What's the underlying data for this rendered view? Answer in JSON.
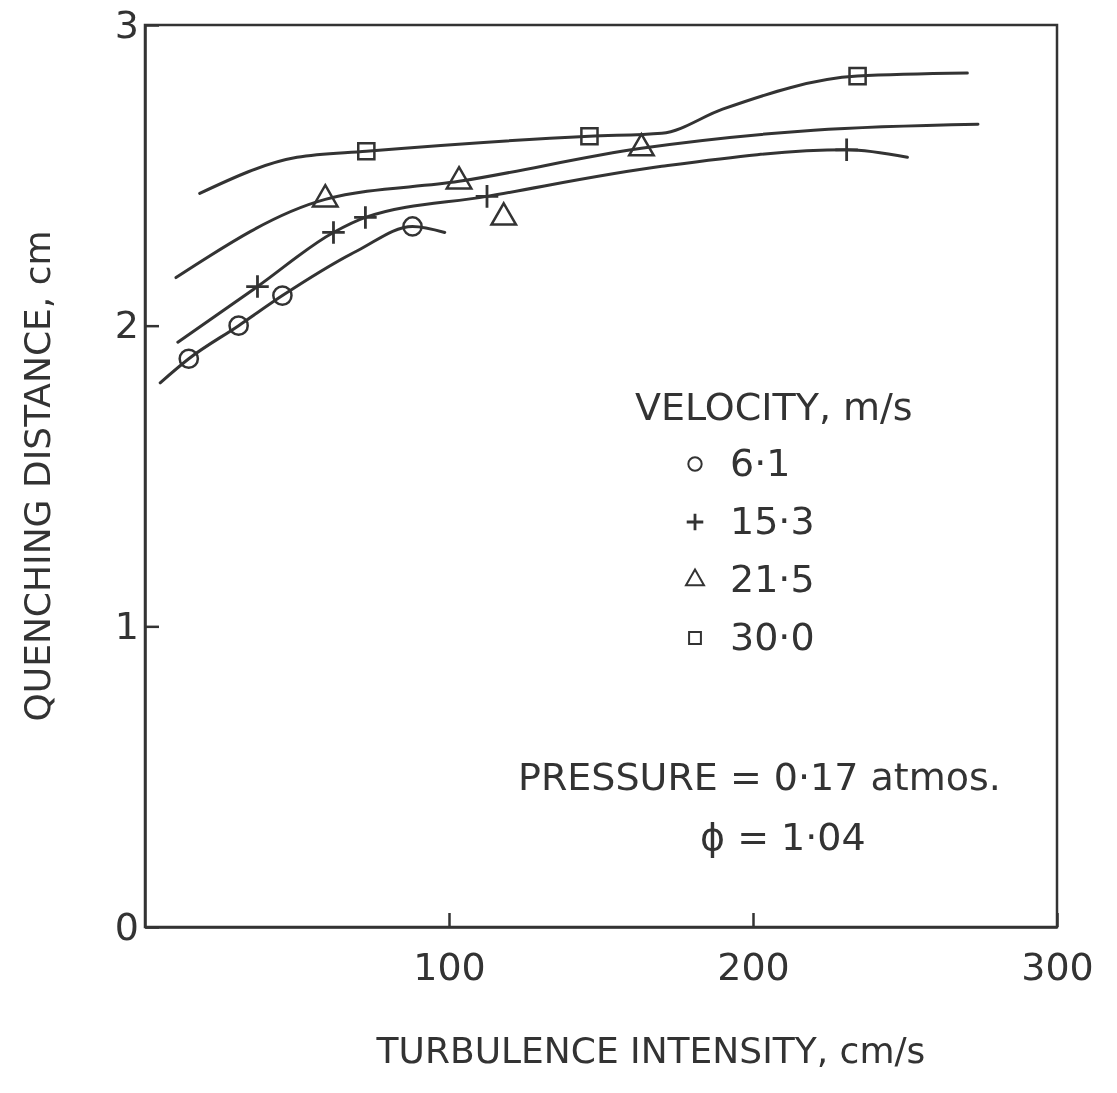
{
  "chart_data": {
    "type": "scatter",
    "xlabel": "TURBULENCE INTENSITY, cm/s",
    "ylabel": "QUENCHING DISTANCE, cm",
    "legend_title": "VELOCITY, m/s",
    "legend": "right",
    "grid": false,
    "xlim": [
      0,
      300
    ],
    "xticks": [
      100,
      200,
      300
    ],
    "ylim": [
      0,
      3
    ],
    "yticks": [
      0,
      1,
      2,
      3
    ],
    "series": [
      {
        "type": "line",
        "color": "#333333",
        "x": [
          5,
          14.4,
          30.8,
          45.2,
          70,
          88,
          98.6
        ],
        "values": [
          1.81,
          1.89,
          2.0,
          2.1,
          2.25,
          2.33,
          2.31
        ]
      },
      {
        "type": "line",
        "color": "#333333",
        "x": [
          10.8,
          37,
          62,
          72.5,
          112.5,
          170,
          230.8,
          250.8
        ],
        "values": [
          1.945,
          2.13,
          2.31,
          2.36,
          2.43,
          2.53,
          2.585,
          2.56
        ]
      },
      {
        "type": "line",
        "color": "#333333",
        "x": [
          10.2,
          59.3,
          103.3,
          163.3,
          220,
          274
        ],
        "values": [
          2.16,
          2.42,
          2.48,
          2.59,
          2.65,
          2.67
        ]
      },
      {
        "type": "line",
        "color": "#333333",
        "x": [
          18,
          50,
          72.8,
          146.2,
          170,
          190,
          234.4,
          270.5
        ],
        "values": [
          2.44,
          2.56,
          2.58,
          2.63,
          2.64,
          2.72,
          2.83,
          2.84
        ]
      },
      {
        "name": "6·1",
        "marker": "circle",
        "color": "#333333",
        "x": [
          14.4,
          30.8,
          45.2,
          88
        ],
        "values": [
          1.89,
          2.0,
          2.1,
          2.33
        ]
      },
      {
        "name": "15·3",
        "marker": "cross",
        "color": "#333333",
        "x": [
          37,
          62,
          72.5,
          112.5,
          230.8
        ],
        "values": [
          2.13,
          2.31,
          2.36,
          2.43,
          2.585
        ]
      },
      {
        "name": "21·5",
        "marker": "triangle",
        "color": "#333333",
        "x": [
          59.3,
          103.3,
          118,
          163.3
        ],
        "values": [
          2.42,
          2.48,
          2.36,
          2.59
        ]
      },
      {
        "name": "30·0",
        "marker": "square",
        "color": "#333333",
        "x": [
          72.8,
          146.2,
          234.4
        ],
        "values": [
          2.58,
          2.63,
          2.83
        ]
      }
    ],
    "annotations": [
      "PRESSURE = 0·17 atmos.",
      "ϕ = 1·04"
    ]
  }
}
